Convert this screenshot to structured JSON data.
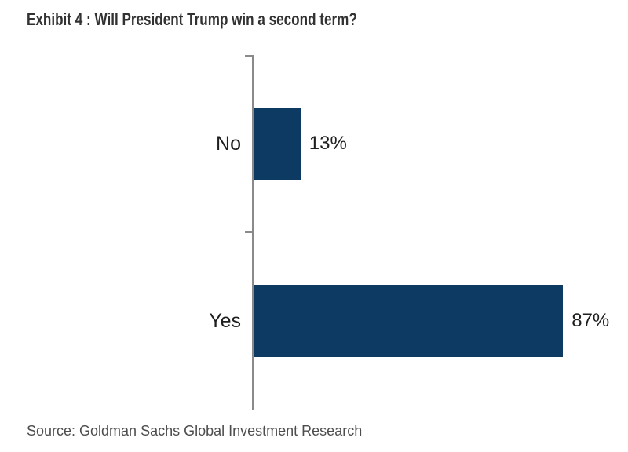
{
  "chart_data": {
    "type": "bar",
    "orientation": "horizontal",
    "title": "Exhibit 4 : Will President Trump win a second term?",
    "categories": [
      "No",
      "Yes"
    ],
    "values": [
      13,
      87
    ],
    "value_labels": [
      "13%",
      "87%"
    ],
    "xlim": [
      0,
      100
    ],
    "grid": false,
    "legend": false,
    "bar_color": "#0d3a63",
    "axis_color": "#8a8a8a",
    "source": "Source: Goldman Sachs Global Investment Research"
  },
  "colors": {
    "background": "#ffffff",
    "title_text": "#323232",
    "label_text": "#1f1f1f",
    "source_text": "#4d4d4d"
  }
}
